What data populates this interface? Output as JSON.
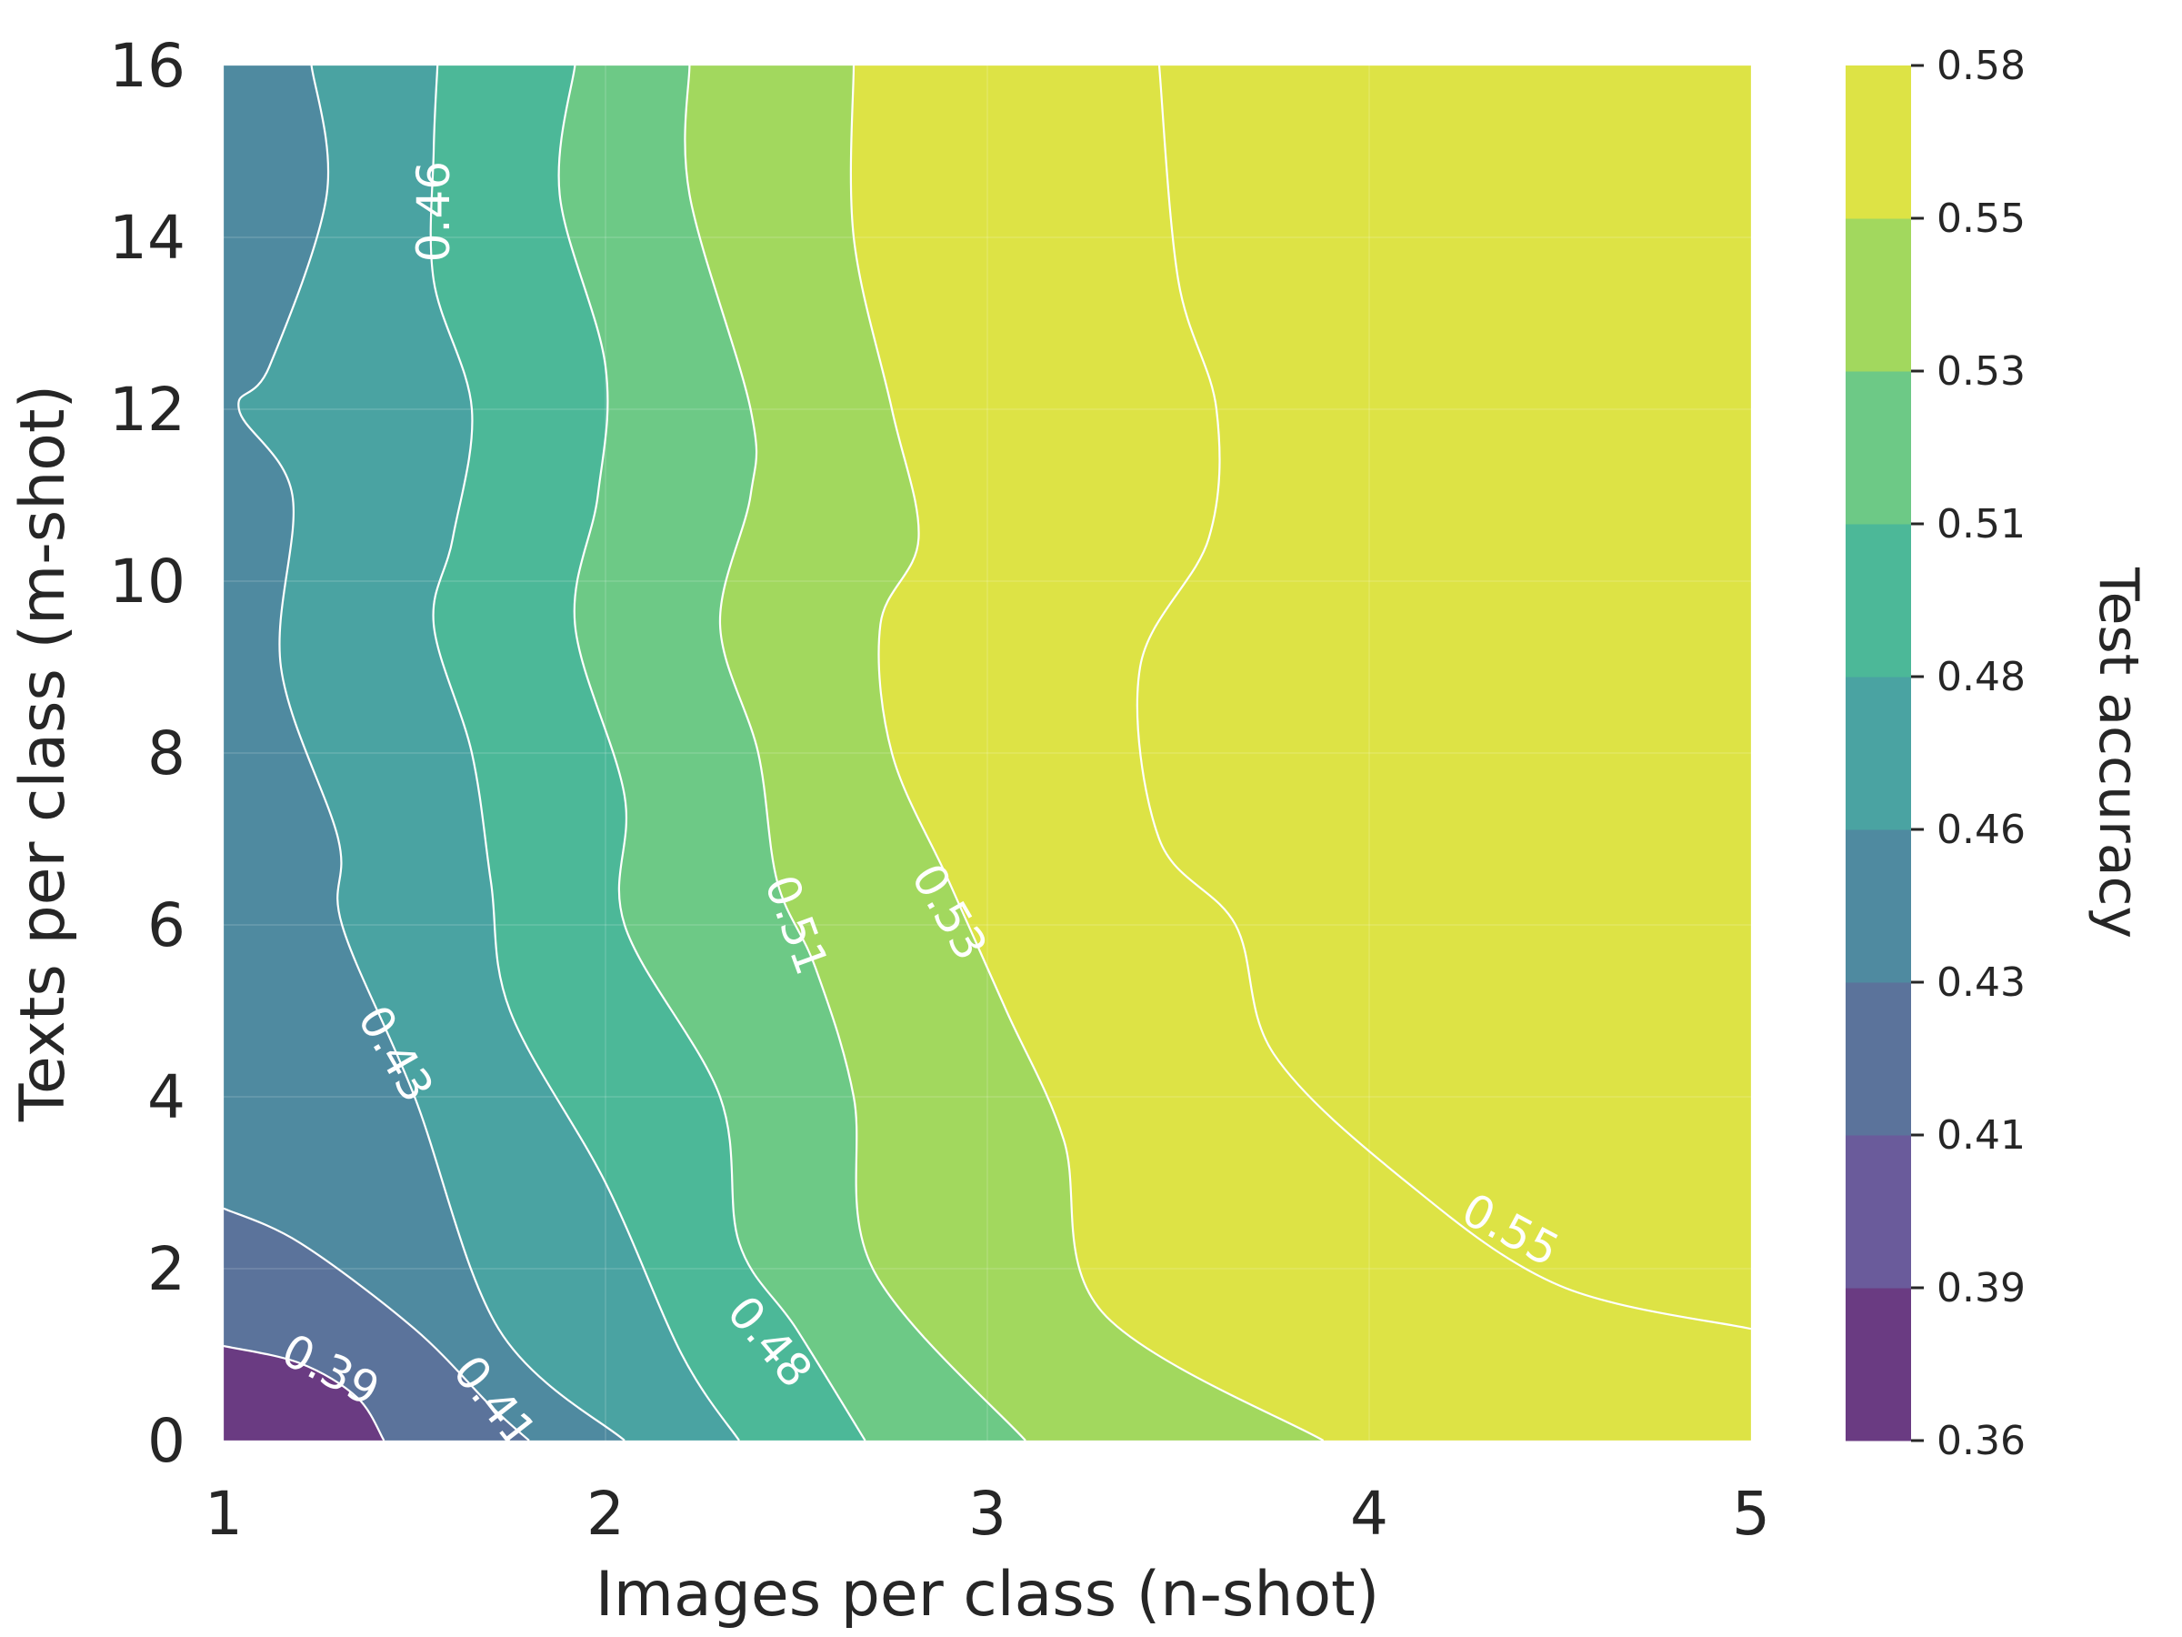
{
  "chart_data": {
    "type": "heatmap",
    "subtype": "filled-contour",
    "title": "",
    "xlabel": "Images per class (n-shot)",
    "ylabel": "Texts per class (m-shot)",
    "xlim": [
      1,
      5
    ],
    "ylim": [
      0,
      16
    ],
    "xticks": [
      "1",
      "2",
      "3",
      "4",
      "5"
    ],
    "yticks": [
      "0",
      "2",
      "4",
      "6",
      "8",
      "10",
      "12",
      "14",
      "16"
    ],
    "grid": true,
    "colormap": "viridis",
    "colorbar": {
      "label": "Test accuracy",
      "ticks": [
        "0.36",
        "0.39",
        "0.41",
        "0.43",
        "0.46",
        "0.48",
        "0.51",
        "0.53",
        "0.55",
        "0.58"
      ],
      "levels": [
        0.36,
        0.385,
        0.41,
        0.435,
        0.46,
        0.485,
        0.51,
        0.535,
        0.56,
        0.585
      ],
      "colors": [
        "#6a3b82",
        "#6a5b9b",
        "#5b739b",
        "#4f8aa0",
        "#4aa3a2",
        "#4cb898",
        "#6dc986",
        "#a2d85e",
        "#dde345"
      ]
    },
    "contour_lines": [
      {
        "label": "0.39",
        "points": [
          [
            1.0,
            1.1
          ],
          [
            1.2,
            0.9
          ],
          [
            1.35,
            0.5
          ],
          [
            1.42,
            0.0
          ]
        ]
      },
      {
        "label": "0.41",
        "points": [
          [
            1.0,
            2.7
          ],
          [
            1.2,
            2.3
          ],
          [
            1.5,
            1.3
          ],
          [
            1.7,
            0.4
          ],
          [
            1.8,
            0.0
          ]
        ]
      },
      {
        "label": "0.43",
        "points": [
          [
            1.23,
            16
          ],
          [
            1.27,
            14.5
          ],
          [
            1.12,
            12.5
          ],
          [
            1.04,
            12.0
          ],
          [
            1.18,
            11.0
          ],
          [
            1.15,
            9.0
          ],
          [
            1.3,
            7.0
          ],
          [
            1.31,
            6.0
          ],
          [
            1.5,
            4.0
          ],
          [
            1.72,
            1.3
          ],
          [
            2.05,
            0.0
          ]
        ]
      },
      {
        "label": "0.46",
        "points": [
          [
            1.56,
            16
          ],
          [
            1.55,
            15
          ],
          [
            1.55,
            13.5
          ],
          [
            1.65,
            12.0
          ],
          [
            1.6,
            10.5
          ],
          [
            1.55,
            9.5
          ],
          [
            1.65,
            8.0
          ],
          [
            1.7,
            6.5
          ],
          [
            1.75,
            5.0
          ],
          [
            2.0,
            3.0
          ],
          [
            2.2,
            1.0
          ],
          [
            2.35,
            0.0
          ]
        ]
      },
      {
        "label": "0.48",
        "points": [
          [
            1.92,
            16
          ],
          [
            1.88,
            14.5
          ],
          [
            2.0,
            12.5
          ],
          [
            1.98,
            11.0
          ],
          [
            1.92,
            9.5
          ],
          [
            2.05,
            7.5
          ],
          [
            2.05,
            6.0
          ],
          [
            2.3,
            4.0
          ],
          [
            2.35,
            2.3
          ],
          [
            2.5,
            1.3
          ],
          [
            2.68,
            0.0
          ]
        ]
      },
      {
        "label": "0.51",
        "points": [
          [
            2.22,
            16
          ],
          [
            2.22,
            14.5
          ],
          [
            2.38,
            12.0
          ],
          [
            2.38,
            11.0
          ],
          [
            2.3,
            9.5
          ],
          [
            2.4,
            8.0
          ],
          [
            2.45,
            6.5
          ],
          [
            2.55,
            5.5
          ],
          [
            2.65,
            4.0
          ],
          [
            2.7,
            2.0
          ],
          [
            3.1,
            0.0
          ]
        ]
      },
      {
        "label": "0.53",
        "points": [
          [
            2.65,
            16
          ],
          [
            2.65,
            14.0
          ],
          [
            2.75,
            12.0
          ],
          [
            2.82,
            10.5
          ],
          [
            2.72,
            9.5
          ],
          [
            2.75,
            8.0
          ],
          [
            2.9,
            6.5
          ],
          [
            3.05,
            5.0
          ],
          [
            3.2,
            3.5
          ],
          [
            3.3,
            1.5
          ],
          [
            3.88,
            0.0
          ]
        ]
      },
      {
        "label": "0.55",
        "points": [
          [
            3.45,
            16
          ],
          [
            3.5,
            13.5
          ],
          [
            3.6,
            12.0
          ],
          [
            3.58,
            10.5
          ],
          [
            3.4,
            9.0
          ],
          [
            3.45,
            7.0
          ],
          [
            3.65,
            6.0
          ],
          [
            3.75,
            4.5
          ],
          [
            4.1,
            3.0
          ],
          [
            4.5,
            1.8
          ],
          [
            5.0,
            1.3
          ]
        ]
      }
    ]
  }
}
